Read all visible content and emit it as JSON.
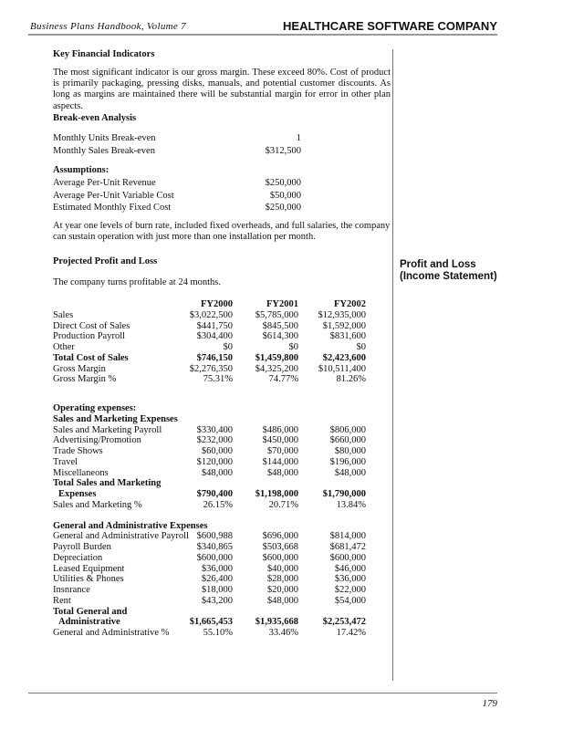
{
  "header": {
    "book_title": "Business Plans Handbook, Volume 7",
    "company": "HEALTHCARE SOFTWARE COMPANY"
  },
  "key_indicators": {
    "heading": "Key Financial Indicators",
    "body": "The most significant indicator is our gross margin. These exceed 80%. Cost of product is primarily packaging, pressing disks, manuals, and potential customer discounts. As long as margins are maintained there will be substantial margin for error in other plan aspects."
  },
  "break_even": {
    "heading": "Break-even Analysis",
    "rows": [
      {
        "label": "Monthly Units Break-even",
        "value": "1"
      },
      {
        "label": "Monthly Sales Break-even",
        "value": "$312,500"
      }
    ],
    "assumptions_heading": "Assumptions:",
    "assumptions": [
      {
        "label": "Average Per-Unit Revenue",
        "value": "$250,000"
      },
      {
        "label": "Average Per-Unit Variable Cost",
        "value": "$50,000"
      },
      {
        "label": "Estimated Monthly Fixed Cost",
        "value": "$250,000"
      }
    ],
    "note": "At year one levels of burn rate, included fixed overheads, and full salaries, the company can sustain operation with just more than one installation per month."
  },
  "projected_pl": {
    "heading": "Projected Profit and Loss",
    "intro": "The company turns profitable at 24 months.",
    "side_heading_line1": "Profit and Loss",
    "side_heading_line2": "(Income Statement)",
    "sections": [
      [
        {
          "label": "",
          "values": [
            "FY2000",
            "FY2001",
            "FY2002"
          ],
          "bold": true
        },
        {
          "label": "Sales",
          "values": [
            "$3,022,500",
            "$5,785,000",
            "$12,935,000"
          ]
        },
        {
          "label": "Direct Cost of Sales",
          "values": [
            "$441,750",
            "$845,500",
            "$1,592,000"
          ]
        },
        {
          "label": "Production Payroll",
          "values": [
            "$304,400",
            "$614,300",
            "$831,600"
          ]
        },
        {
          "label": "Other",
          "values": [
            "$0",
            "$0",
            "$0"
          ]
        },
        {
          "label": "Total Cost of Sales",
          "values": [
            "$746,150",
            "$1,459,800",
            "$2,423,600"
          ],
          "bold": true
        },
        {
          "label": "Gross Margin",
          "values": [
            "$2,276,350",
            "$4,325,200",
            "$10,511,400"
          ]
        },
        {
          "label": "Gross Margin %",
          "values": [
            "75.31%",
            "74.77%",
            "81.26%"
          ]
        }
      ],
      [
        {
          "label": "Operating expenses:",
          "values": [
            "",
            "",
            ""
          ],
          "bold": true
        },
        {
          "label": "Sales and Marketing Expenses",
          "values": [
            "",
            "",
            ""
          ],
          "bold": true
        },
        {
          "label": "Sales and Marketing Payroll",
          "values": [
            "$330,400",
            "$486,000",
            "$806,000"
          ]
        },
        {
          "label": "Advertising/Promotion",
          "values": [
            "$232,000",
            "$450,000",
            "$660,000"
          ]
        },
        {
          "label": "Trade Shows",
          "values": [
            "$60,000",
            "$70,000",
            "$80,000"
          ]
        },
        {
          "label": "Travel",
          "values": [
            "$120,000",
            "$144,000",
            "$196,000"
          ]
        },
        {
          "label": "Miscellaneons",
          "values": [
            "$48,000",
            "$48,000",
            "$48,000"
          ]
        },
        {
          "label": "Total Sales and Marketing",
          "values": [
            "",
            "",
            ""
          ],
          "bold": true
        },
        {
          "label": "Expenses",
          "values": [
            "$790,400",
            "$1,198,000",
            "$1,790,000"
          ],
          "bold": true,
          "indent": true
        },
        {
          "label": "Sales and Marketing %",
          "values": [
            "26.15%",
            "20.71%",
            "13.84%"
          ]
        }
      ],
      [
        {
          "label": "General and Administrative Expenses",
          "values": [
            "",
            "",
            ""
          ],
          "bold": true
        },
        {
          "label": "General and Administrative Payroll",
          "values": [
            "$600,988",
            "$696,000",
            "$814,000"
          ]
        },
        {
          "label": "Payroll Burden",
          "values": [
            "$340,865",
            "$503,668",
            "$681,472"
          ]
        },
        {
          "label": "Depreciation",
          "values": [
            "$600,000",
            "$600,000",
            "$600,000"
          ]
        },
        {
          "label": "Leased Equipment",
          "values": [
            "$36,000",
            "$40,000",
            "$46,000"
          ]
        },
        {
          "label": "Utilities & Phones",
          "values": [
            "$26,400",
            "$28,000",
            "$36,000"
          ]
        },
        {
          "label": "Insnrance",
          "values": [
            "$18,000",
            "$20,000",
            "$22,000"
          ]
        },
        {
          "label": "Rent",
          "values": [
            "$43,200",
            "$48,000",
            "$54,000"
          ]
        },
        {
          "label": "Total General and",
          "values": [
            "",
            "",
            ""
          ],
          "bold": true
        },
        {
          "label": "Administrative",
          "values": [
            "$1,665,453",
            "$1,935,668",
            "$2,253,472"
          ],
          "bold": true,
          "indent": true
        },
        {
          "label": "General and Administrative %",
          "values": [
            "55.10%",
            "33.46%",
            "17.42%"
          ]
        }
      ]
    ]
  },
  "footer": {
    "page_number": "179"
  }
}
